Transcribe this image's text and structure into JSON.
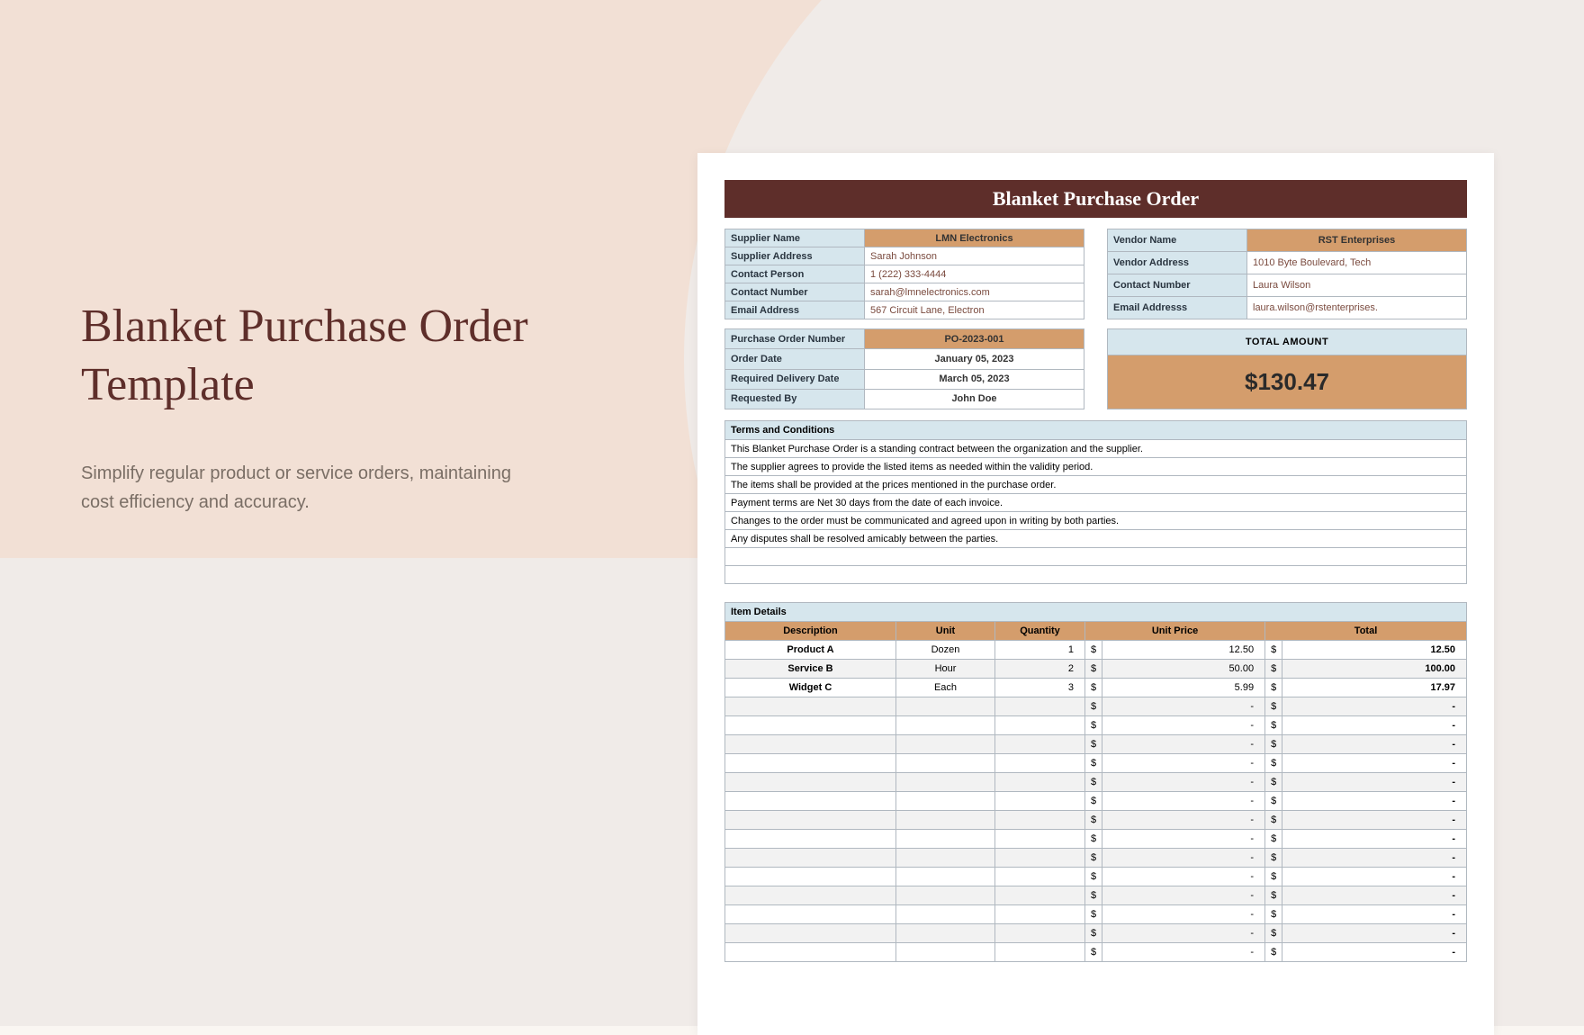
{
  "colors": {
    "header_bg": "#5e2e2a",
    "label_bg": "#d6e6ed",
    "accent_bg": "#d49d6c",
    "border": "#b0b8c0",
    "value_text": "#7a4a3e"
  },
  "left": {
    "title": "Blanket Purchase Order Template",
    "subtitle": "Simplify regular product or service orders, maintaining cost efficiency and accuracy."
  },
  "doc": {
    "header": "Blanket Purchase Order",
    "supplier": {
      "rows": [
        {
          "label": "Supplier Name",
          "value": "LMN Electronics",
          "highlight": true
        },
        {
          "label": "Supplier Address",
          "value": "Sarah Johnson"
        },
        {
          "label": "Contact Person",
          "value": "1 (222) 333-4444"
        },
        {
          "label": "Contact Number",
          "value": "sarah@lmnelectronics.com"
        },
        {
          "label": "Email Address",
          "value": "567 Circuit Lane, Electron"
        }
      ]
    },
    "vendor": {
      "rows": [
        {
          "label": "Vendor Name",
          "value": "RST Enterprises",
          "highlight": true
        },
        {
          "label": "Vendor Address",
          "value": "1010 Byte Boulevard, Tech"
        },
        {
          "label": "Contact Number",
          "value": "Laura Wilson"
        },
        {
          "label": "Email Addresss",
          "value": "laura.wilson@rstenterprises."
        }
      ]
    },
    "order": {
      "rows": [
        {
          "label": "Purchase Order Number",
          "value": "PO-2023-001",
          "highlight": true
        },
        {
          "label": "Order Date",
          "value": "January 05, 2023"
        },
        {
          "label": "Required Delivery Date",
          "value": "March 05, 2023"
        },
        {
          "label": "Requested By",
          "value": "John Doe"
        }
      ]
    },
    "total": {
      "label": "TOTAL AMOUNT",
      "value": "$130.47"
    },
    "terms": {
      "header": "Terms and Conditions",
      "lines": [
        "This Blanket Purchase Order is a standing contract between the organization and the supplier.",
        "The supplier agrees to provide the listed items as needed within the validity period.",
        "The items shall be provided at the prices mentioned in the purchase order.",
        "Payment terms are Net 30 days from the date of each invoice.",
        "Changes to the order must be communicated and agreed upon in writing by both parties.",
        "Any disputes shall be resolved amicably between the parties.",
        "",
        ""
      ]
    },
    "items": {
      "header": "Item Details",
      "columns": [
        "Description",
        "Unit",
        "Quantity",
        "Unit Price",
        "Total"
      ],
      "currency": "$",
      "rows": [
        {
          "desc": "Product A",
          "unit": "Dozen",
          "qty": "1",
          "price": "12.50",
          "total": "12.50"
        },
        {
          "desc": "Service B",
          "unit": "Hour",
          "qty": "2",
          "price": "50.00",
          "total": "100.00"
        },
        {
          "desc": "Widget C",
          "unit": "Each",
          "qty": "3",
          "price": "5.99",
          "total": "17.97"
        }
      ],
      "empty_rows": 14,
      "empty_total": "-"
    }
  }
}
